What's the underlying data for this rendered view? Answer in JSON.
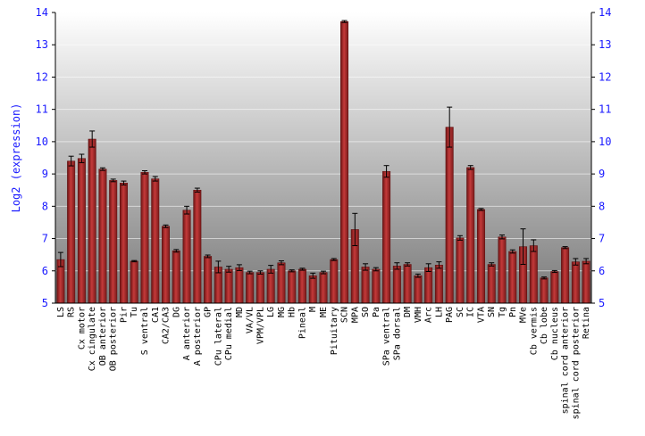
{
  "chart_data": {
    "type": "bar",
    "ylabel": "Log2 (expression)",
    "xlabel": "",
    "title": "",
    "ylim": [
      5,
      14
    ],
    "yticks": [
      5,
      6,
      7,
      8,
      9,
      10,
      11,
      12,
      13,
      14
    ],
    "grid": true,
    "y_axis_both_sides": true,
    "error_bars": true,
    "bar_color": "#a82a2a",
    "axis_label_color": "#1a1aff",
    "categories": [
      "LS",
      "RS",
      "Cx motor",
      "Cx cingulate",
      "OB anterior",
      "OB posterior",
      "Pir",
      "Tu",
      "S ventral",
      "CA1",
      "CA2/CA3",
      "DG",
      "A anterior",
      "A posterior",
      "GP",
      "CPu lateral",
      "CPu medial",
      "MD",
      "VA/VL",
      "VPM/VPL",
      "LG",
      "MG",
      "Hb",
      "Pineal",
      "M",
      "ME",
      "Pituitary",
      "SCN",
      "MPA",
      "SO",
      "Pa",
      "SPa ventral",
      "SPa dorsal",
      "DM",
      "VMH",
      "Arc",
      "LH",
      "PAG",
      "SC",
      "IC",
      "VTA",
      "SN",
      "Tg",
      "Pn",
      "MVe",
      "Cb vermis",
      "Cb lobe",
      "Cb nucleus",
      "spinal cord anterior",
      "spinal cord posterior",
      "Retina"
    ],
    "values": [
      6.35,
      9.4,
      9.48,
      10.08,
      9.15,
      8.8,
      8.72,
      6.3,
      9.05,
      8.85,
      7.38,
      6.62,
      7.88,
      8.5,
      6.45,
      6.12,
      6.05,
      6.1,
      5.95,
      5.95,
      6.05,
      6.25,
      6.0,
      6.05,
      5.85,
      5.95,
      6.35,
      13.72,
      7.28,
      6.12,
      6.05,
      9.08,
      6.15,
      6.2,
      5.85,
      6.1,
      6.18,
      10.45,
      7.02,
      9.2,
      7.9,
      6.2,
      7.05,
      6.6,
      6.75,
      6.78,
      5.78,
      5.98,
      6.72,
      6.28,
      6.3
    ],
    "errors": [
      0.22,
      0.15,
      0.13,
      0.25,
      0.04,
      0.04,
      0.06,
      0.02,
      0.05,
      0.07,
      0.04,
      0.04,
      0.12,
      0.06,
      0.04,
      0.18,
      0.09,
      0.09,
      0.04,
      0.05,
      0.12,
      0.06,
      0.03,
      0.03,
      0.08,
      0.04,
      0.03,
      0.03,
      0.5,
      0.1,
      0.05,
      0.18,
      0.1,
      0.05,
      0.05,
      0.12,
      0.1,
      0.62,
      0.07,
      0.06,
      0.03,
      0.05,
      0.06,
      0.05,
      0.55,
      0.18,
      0.03,
      0.03,
      0.03,
      0.1,
      0.08
    ]
  }
}
